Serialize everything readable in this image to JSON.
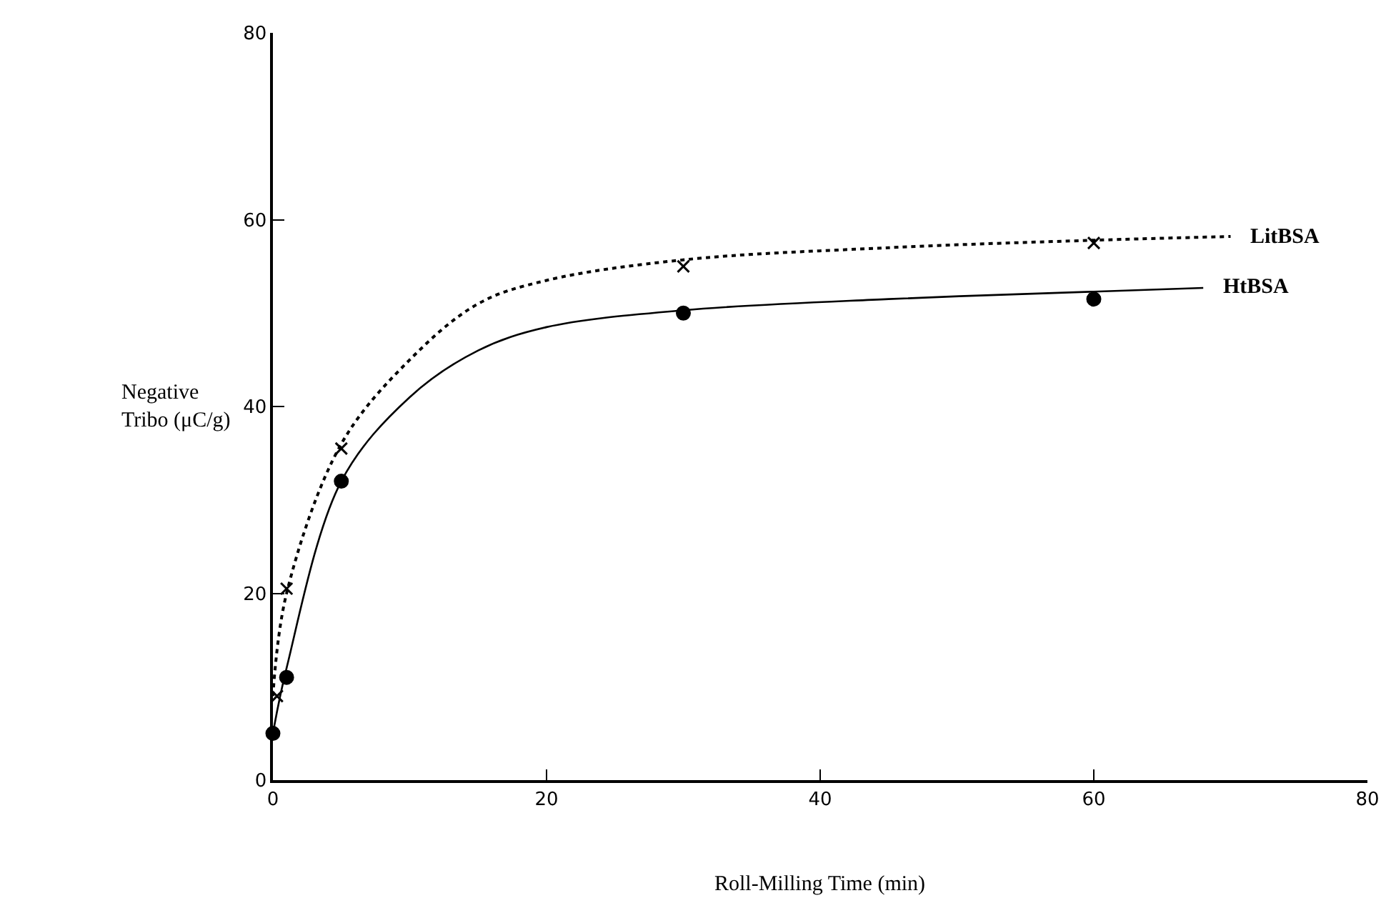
{
  "chart_data": {
    "type": "scatter",
    "xlabel": "Roll-Milling Time (min)",
    "ylabel": "Negative\nTribo (μC/g)",
    "xlim": [
      0,
      80
    ],
    "xticks": [
      0,
      20,
      40,
      60,
      80
    ],
    "ylim": [
      0,
      80
    ],
    "yticks": [
      0,
      20,
      40,
      60,
      80
    ],
    "series": [
      {
        "marker": "cross",
        "color": "#000000",
        "x": [
          0.3,
          1,
          5,
          30,
          60
        ],
        "values": [
          9,
          20.5,
          35.5,
          55,
          57.5
        ]
      },
      {
        "marker": "circle",
        "color": "#000000",
        "x": [
          0,
          1,
          5,
          30,
          60
        ],
        "values": [
          5,
          11,
          32,
          50,
          51.5
        ]
      },
      {
        "type": "line",
        "name": "LitBSA",
        "line_style": "dotted",
        "color": "#000000",
        "x": [
          0,
          1,
          5,
          10,
          15,
          20,
          30,
          45,
          60,
          70
        ],
        "values": [
          9,
          20,
          36,
          45,
          51,
          53.5,
          55.7,
          57,
          57.8,
          58.2
        ]
      },
      {
        "type": "line",
        "name": "HtBSA",
        "line_style": "solid",
        "color": "#000000",
        "x": [
          0,
          1,
          5,
          10,
          15,
          20,
          30,
          45,
          60,
          68
        ],
        "values": [
          5,
          12,
          32,
          41,
          46,
          48.5,
          50.3,
          51.5,
          52.3,
          52.7
        ]
      }
    ]
  }
}
